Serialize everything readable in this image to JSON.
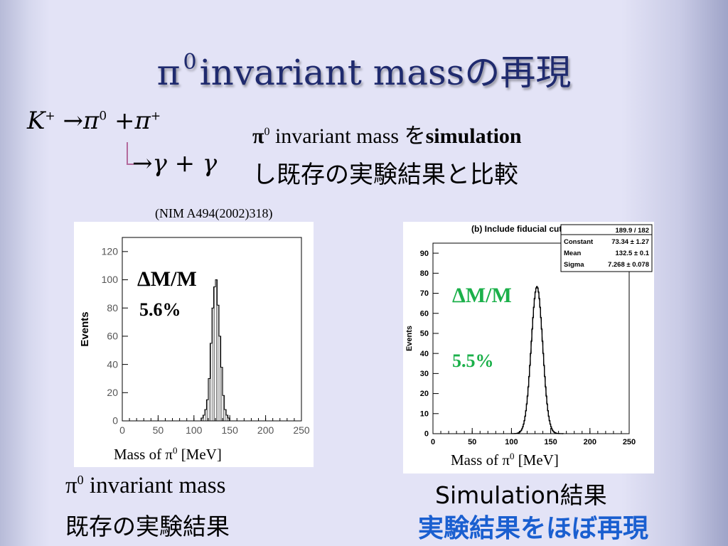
{
  "slide": {
    "title_pi": "π",
    "title_sup": "0",
    "title_rest": "invariant massの再現"
  },
  "formula": {
    "K": "K",
    "K_sup": "+",
    "arrow": "→",
    "pi": "π",
    "pi0_sup": "0",
    "plus": "+",
    "pi2": "π",
    "pip_sup": "+",
    "decay": "→γ + γ"
  },
  "description": {
    "pi": "π",
    "sup": "0",
    "line1_middle": " invariant mass を",
    "line1_bold": "simulation",
    "line2": "し既存の実験結果と比較"
  },
  "reference": "(NIM A494(2002)318)",
  "plot_left": {
    "delta_label": "ΔM/M",
    "resolution": "5.6%",
    "xlabel_prefix": "Mass of  π",
    "xlabel_sup": "0",
    "xlabel_suffix": " [MeV]",
    "caption_pi": "π",
    "caption_sup": "0",
    "caption_line1": " invariant mass",
    "caption_line2": "既存の実験結果"
  },
  "plot_right": {
    "delta_label": "ΔM/M",
    "resolution": "5.5%",
    "xlabel_prefix": "Mass of  π",
    "xlabel_sup": "0",
    "xlabel_suffix": " [MeV]",
    "caption_line1": "Simulation結果",
    "caption_line2": "実験結果をほぼ再現",
    "highlight_color": "#1bb04a",
    "caption_color": "#1a5fd0"
  },
  "chart_data": [
    {
      "type": "histogram",
      "title": "",
      "xlabel": "Mass of π0 [MeV]",
      "ylabel": "Events",
      "xlim": [
        0,
        250
      ],
      "ylim": [
        0,
        130
      ],
      "xticks": [
        0,
        50,
        100,
        150,
        200,
        250
      ],
      "yticks": [
        0,
        20,
        40,
        60,
        80,
        100,
        120
      ],
      "bin_width": 2.5,
      "x": [
        110,
        112.5,
        115,
        117.5,
        120,
        122.5,
        125,
        127.5,
        130,
        132.5,
        135,
        137.5,
        140,
        142.5,
        145,
        147.5
      ],
      "values": [
        2,
        4,
        8,
        15,
        30,
        55,
        80,
        95,
        100,
        82,
        60,
        38,
        18,
        8,
        4,
        2
      ]
    },
    {
      "type": "histogram",
      "title": "(b) Include fiducial cut",
      "xlabel": "Mass of π0 [MeV]",
      "ylabel": "Events",
      "xlim": [
        0,
        250
      ],
      "ylim": [
        0,
        95
      ],
      "xticks": [
        0,
        50,
        100,
        150,
        200,
        250
      ],
      "yticks": [
        0,
        10,
        20,
        30,
        40,
        50,
        60,
        70,
        80,
        90
      ],
      "bin_width": 1,
      "stats": [
        {
          "name": "",
          "value": "189.9 / 182"
        },
        {
          "name": "Constant",
          "value": "73.34 ± 1.27"
        },
        {
          "name": "Mean",
          "value": "132.5 ± 0.1"
        },
        {
          "name": "Sigma",
          "value": "7.268 ± 0.078"
        }
      ],
      "gauss": {
        "constant": 73.34,
        "mean": 132.5,
        "sigma": 7.268
      }
    }
  ]
}
